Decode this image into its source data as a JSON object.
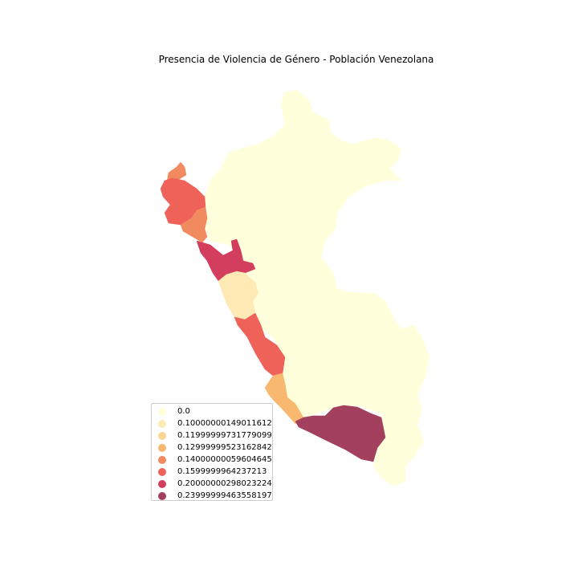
{
  "title": "Presencia de Violencia de Género - Población Venezolana",
  "legend": [
    {
      "label": "0.0",
      "color": "#ffffdb"
    },
    {
      "label": "0.10000000149011612",
      "color": "#ffeab6"
    },
    {
      "label": "0.11999999731779099",
      "color": "#fdd594"
    },
    {
      "label": "0.12999999523162842",
      "color": "#f9b870"
    },
    {
      "label": "0.14000000059604645",
      "color": "#f18a5f"
    },
    {
      "label": "0.1599999964237213",
      "color": "#ee625a"
    },
    {
      "label": "0.20000000298023224",
      "color": "#d33e5e"
    },
    {
      "label": "0.23999999463558197",
      "color": "#a2405d"
    }
  ],
  "regions": [
    {
      "id": "default",
      "value": 0.0,
      "color": "#ffffdb"
    },
    {
      "id": "lima-north",
      "value": 0.10000000149011612,
      "color": "#ffeab6"
    },
    {
      "id": "ica",
      "value": 0.12999999523162842,
      "color": "#f9b870"
    },
    {
      "id": "tumbes",
      "value": 0.14000000059604645,
      "color": "#f18a5f"
    },
    {
      "id": "lambayeque",
      "value": 0.14000000059604645,
      "color": "#f18a5f"
    },
    {
      "id": "piura",
      "value": 0.1599999964237213,
      "color": "#ee625a"
    },
    {
      "id": "lima",
      "value": 0.1599999964237213,
      "color": "#ee625a"
    },
    {
      "id": "la-libertad",
      "value": 0.20000000298023224,
      "color": "#d33e5e"
    },
    {
      "id": "arequipa",
      "value": 0.23999999463558197,
      "color": "#a2405d"
    }
  ]
}
